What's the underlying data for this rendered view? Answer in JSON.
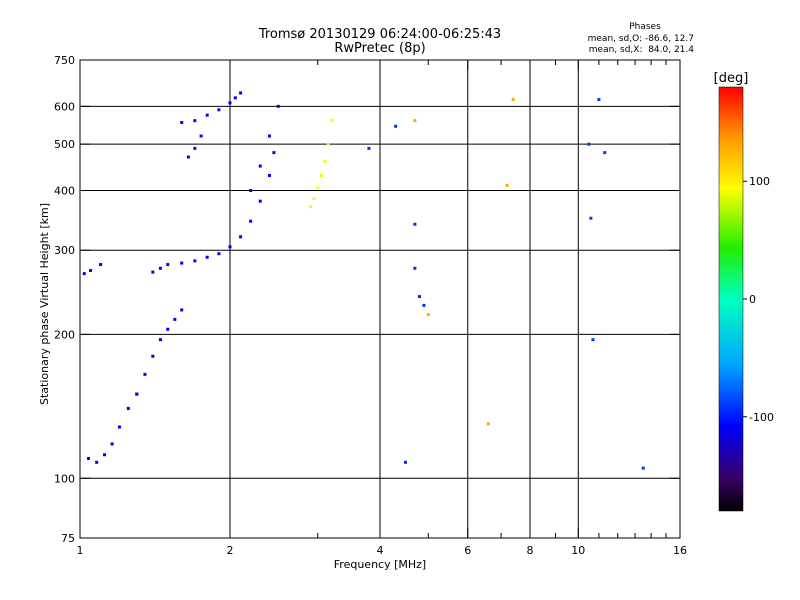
{
  "chart_data": {
    "type": "scatter",
    "title": "Tromsø 20130129 06:24:00-06:25:43",
    "subtitle": "RwPretec (8p)",
    "xlabel": "Frequency [MHz]",
    "ylabel": "Stationary phase Virtual Height [km]",
    "x_scale": "log",
    "y_scale": "log",
    "xlim": [
      1,
      16
    ],
    "ylim": [
      75,
      750
    ],
    "x_ticks": [
      {
        "value": 1,
        "label": "1"
      },
      {
        "value": 2,
        "label": "2"
      },
      {
        "value": 4,
        "label": "4"
      },
      {
        "value": 6,
        "label": "6"
      },
      {
        "value": 8,
        "label": "8"
      },
      {
        "value": 10,
        "label": "10"
      },
      {
        "value": 16,
        "label": "16"
      }
    ],
    "x_minor_ticks": [
      3,
      5,
      7,
      9,
      11,
      12,
      13,
      14,
      15
    ],
    "y_ticks": [
      {
        "value": 75,
        "label": "75"
      },
      {
        "value": 100,
        "label": "100"
      },
      {
        "value": 200,
        "label": "200"
      },
      {
        "value": 300,
        "label": "300"
      },
      {
        "value": 400,
        "label": "400"
      },
      {
        "value": 500,
        "label": "500"
      },
      {
        "value": 600,
        "label": "600"
      },
      {
        "value": 750,
        "label": "750"
      }
    ],
    "x_gridlines": [
      2,
      4,
      6,
      8,
      10
    ],
    "y_gridlines": [
      100,
      200,
      300,
      400,
      500,
      600
    ],
    "grid": true,
    "stats": {
      "heading": "Phases",
      "line_o": "mean, sd,O: -86.6, 12.7",
      "line_x": "mean, sd,X:  84.0, 21.4"
    },
    "colorbar": {
      "label": "[deg]",
      "range": [
        -180,
        180
      ],
      "ticks": [
        {
          "value": 100,
          "label": "100"
        },
        {
          "value": 0,
          "label": "0"
        },
        {
          "value": -100,
          "label": "-100"
        }
      ]
    },
    "series": [
      {
        "x": [
          1.02,
          1.05,
          1.1
        ],
        "y": [
          268,
          272,
          280
        ],
        "phase": -110
      },
      {
        "x": [
          1.04,
          1.08,
          1.12,
          1.16,
          1.2,
          1.25,
          1.3
        ],
        "y": [
          110,
          108,
          112,
          118,
          128,
          140,
          150
        ],
        "phase": -112
      },
      {
        "x": [
          1.3,
          1.35,
          1.4,
          1.45,
          1.5,
          1.55,
          1.6
        ],
        "y": [
          150,
          165,
          180,
          195,
          205,
          215,
          225
        ],
        "phase": -110
      },
      {
        "x": [
          1.4,
          1.45,
          1.5,
          1.6,
          1.7,
          1.8,
          1.9,
          2.0,
          2.1,
          2.2,
          2.3,
          2.4,
          2.45
        ],
        "y": [
          270,
          275,
          280,
          282,
          285,
          290,
          295,
          305,
          320,
          345,
          380,
          430,
          480
        ],
        "phase": -108
      },
      {
        "x": [
          2.2,
          2.3,
          2.4,
          2.5
        ],
        "y": [
          400,
          450,
          520,
          600
        ],
        "phase": -112
      },
      {
        "x": [
          1.6,
          1.7,
          1.8,
          1.9,
          2.0,
          2.05,
          2.1
        ],
        "y": [
          555,
          560,
          575,
          590,
          610,
          625,
          640
        ],
        "phase": -110
      },
      {
        "x": [
          1.65,
          1.7,
          1.75
        ],
        "y": [
          470,
          490,
          520
        ],
        "phase": -115
      },
      {
        "x": [
          2.9,
          2.95,
          3.0,
          3.05,
          3.1,
          3.15,
          3.2
        ],
        "y": [
          370,
          385,
          405,
          430,
          460,
          500,
          560
        ],
        "phase": 90
      },
      {
        "x": [
          3.8,
          4.3,
          4.5,
          4.7,
          4.7,
          4.8,
          4.9
        ],
        "y": [
          490,
          545,
          108,
          340,
          275,
          240,
          230
        ],
        "phase": -95
      },
      {
        "x": [
          4.7,
          5.0,
          6.6,
          7.2,
          7.4
        ],
        "y": [
          560,
          220,
          130,
          410,
          620
        ],
        "phase": 130
      },
      {
        "x": [
          10.5,
          10.6,
          10.7,
          11.0,
          11.3,
          13.5
        ],
        "y": [
          500,
          350,
          195,
          620,
          480,
          105
        ],
        "phase": -90
      }
    ]
  }
}
